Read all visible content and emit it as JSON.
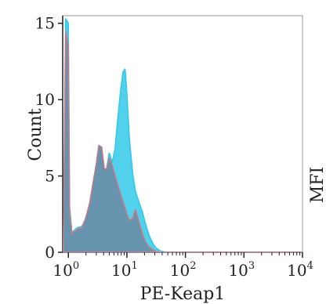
{
  "chart_data": {
    "type": "area",
    "title": "",
    "xlabel": "PE-Keap1",
    "ylabel": "Count",
    "side_label": "MFI",
    "xscale": "log",
    "xlim": [
      0.8,
      10000
    ],
    "ylim": [
      0,
      15.5
    ],
    "yticks": [
      0,
      5,
      10,
      15
    ],
    "ytick_labels": [
      "0",
      "5",
      "10",
      "15"
    ],
    "xticks": [
      1,
      10,
      100,
      1000,
      10000
    ],
    "xtick_labels": [
      {
        "base": "10",
        "exp": "0"
      },
      {
        "base": "10",
        "exp": "1"
      },
      {
        "base": "10",
        "exp": "2"
      },
      {
        "base": "10",
        "exp": "3"
      },
      {
        "base": "10",
        "exp": "4"
      }
    ],
    "grid": false,
    "series": [
      {
        "color": "#33c9e8",
        "fill": "#33c9e8",
        "x": [
          0.82,
          0.9,
          1.0,
          1.05,
          1.15,
          1.4,
          1.7,
          2.0,
          2.3,
          2.6,
          3.0,
          3.3,
          3.7,
          4.1,
          4.5,
          5.0,
          5.6,
          6.3,
          7.0,
          7.8,
          8.6,
          9.3,
          10.0,
          11.0,
          12.5,
          14.0,
          16.0,
          18.5,
          21.0,
          24.0,
          28.0,
          32.0,
          38.0,
          45.0,
          60.0,
          10000
        ],
        "y": [
          0,
          15.3,
          15.0,
          3.0,
          1.3,
          1.6,
          1.7,
          2.2,
          3.0,
          4.2,
          5.6,
          6.9,
          6.8,
          5.2,
          5.5,
          6.5,
          5.9,
          6.8,
          8.8,
          10.6,
          11.8,
          12.0,
          10.4,
          7.5,
          5.2,
          4.0,
          3.3,
          2.6,
          1.8,
          1.1,
          0.55,
          0.25,
          0.08,
          0.02,
          0.0,
          0.0
        ]
      },
      {
        "color": "#c47a88",
        "fill": "#6d7f99",
        "x": [
          0.82,
          0.9,
          1.0,
          1.05,
          1.15,
          1.4,
          1.7,
          2.0,
          2.3,
          2.6,
          3.0,
          3.3,
          3.7,
          4.1,
          4.5,
          5.0,
          5.6,
          6.3,
          7.0,
          7.8,
          8.6,
          9.3,
          10.0,
          11.0,
          12.5,
          14.0,
          16.0,
          18.5,
          21.0,
          24.0,
          28.0,
          32.0,
          38.0,
          45.0,
          60.0,
          10000
        ],
        "y": [
          0,
          14.5,
          13.5,
          2.6,
          1.2,
          1.5,
          1.6,
          2.3,
          3.2,
          4.4,
          5.8,
          7.0,
          6.9,
          5.5,
          5.4,
          6.2,
          5.7,
          5.0,
          4.4,
          3.8,
          3.3,
          2.9,
          2.5,
          2.1,
          2.2,
          2.8,
          2.0,
          1.2,
          0.65,
          0.35,
          0.15,
          0.05,
          0.0,
          0.0,
          0.0,
          0.0
        ]
      }
    ]
  }
}
